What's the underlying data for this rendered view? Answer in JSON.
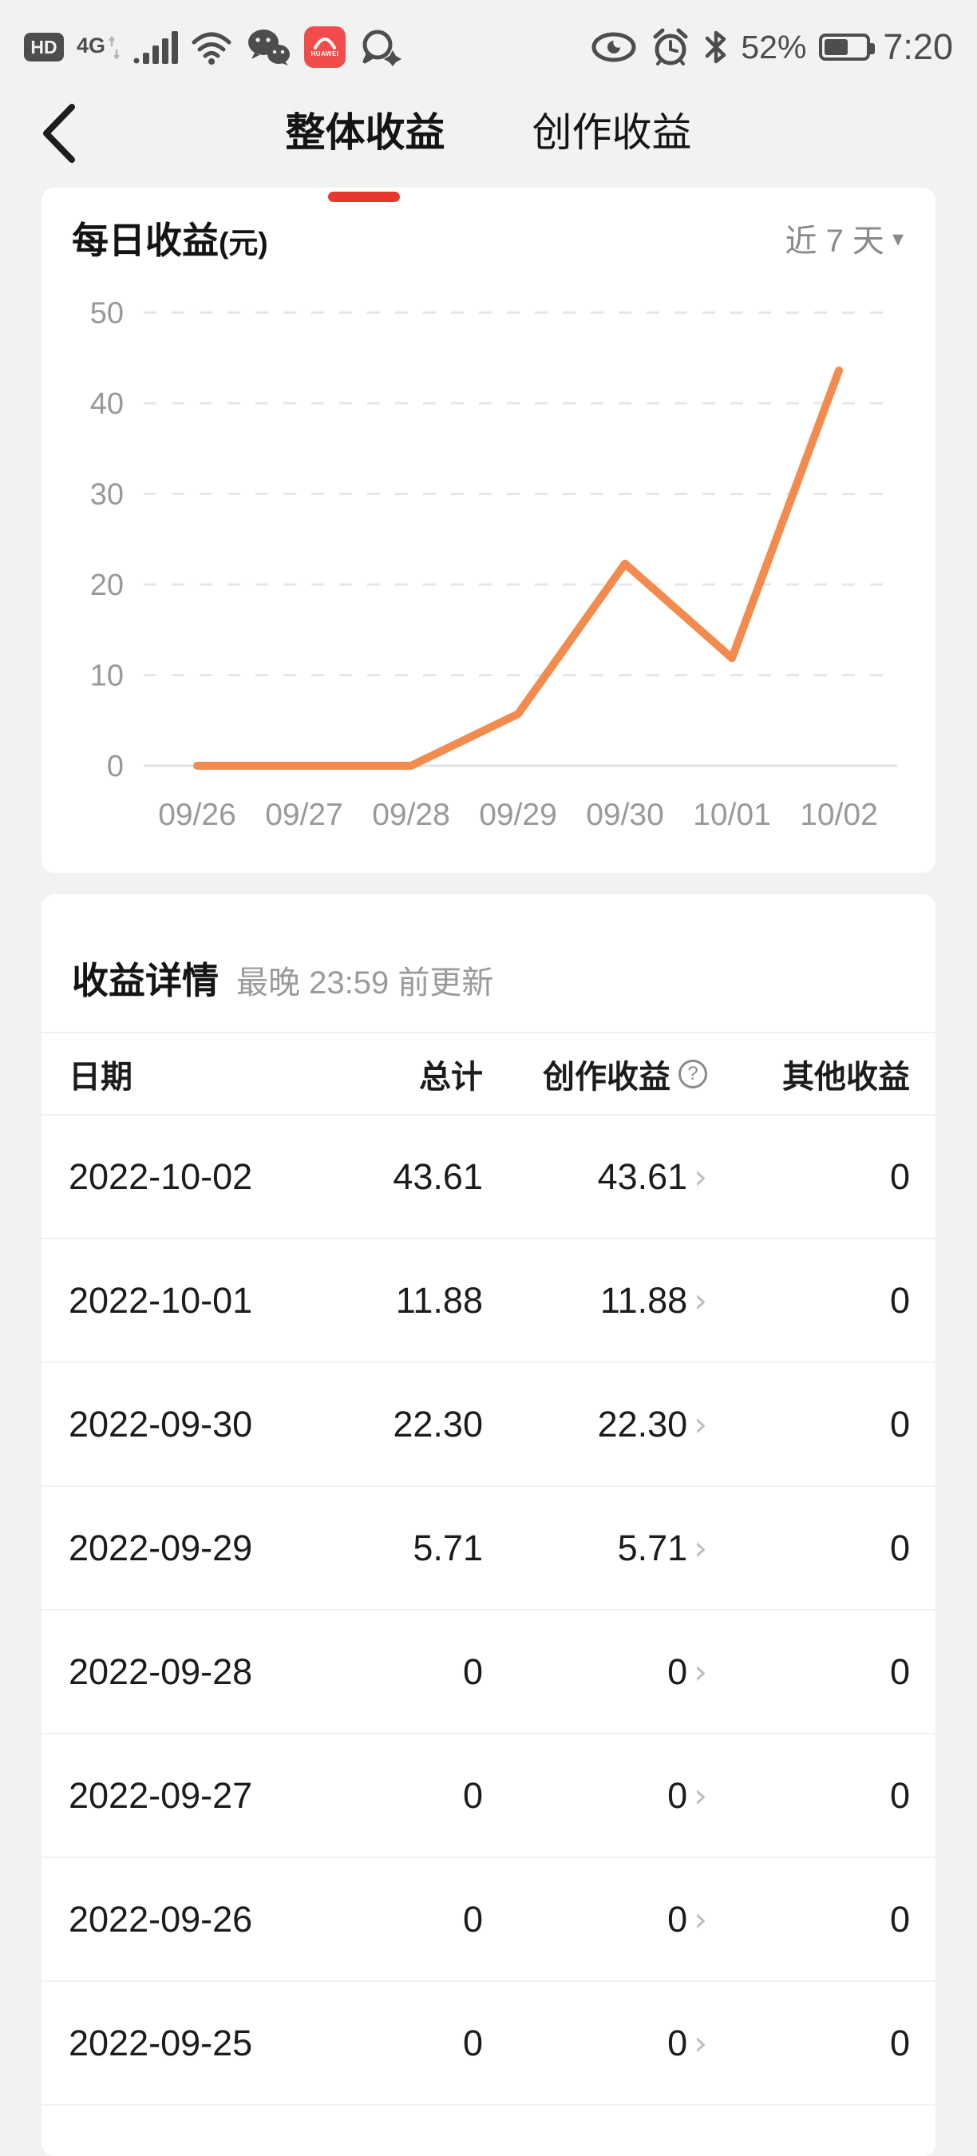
{
  "colors": {
    "accent_red": "#E8382D",
    "line_orange": "#F28B4D",
    "page_bg": "#f2f2f2"
  },
  "icons": {
    "dropdown_arrow": "▾",
    "chevron_right": "›",
    "help_mark": "?"
  },
  "status_bar": {
    "hd_label": "HD",
    "network_label": "4G",
    "huawei_label": "HUAWEI",
    "battery_percent": "52%",
    "time": "7:20"
  },
  "nav": {
    "tabs": [
      {
        "label": "整体收益",
        "active": true
      },
      {
        "label": "创作收益",
        "active": false
      }
    ]
  },
  "chart_card": {
    "title": "每日收益",
    "title_unit": "(元)",
    "range_selector": "近 7 天"
  },
  "chart_data": {
    "type": "line",
    "title": "每日收益(元)",
    "x": [
      "09/26",
      "09/27",
      "09/28",
      "09/29",
      "09/30",
      "10/01",
      "10/02"
    ],
    "values": [
      0,
      0,
      0,
      5.71,
      22.3,
      11.88,
      43.61
    ],
    "series_name": "每日收益",
    "ylim": [
      0,
      50
    ],
    "yticks": [
      0,
      10,
      20,
      30,
      40,
      50
    ],
    "grid": "horizontal-dashed",
    "legend": "none",
    "line_color": "#F28B4D"
  },
  "details_card": {
    "title": "收益详情",
    "subtitle": "最晚 23:59 前更新",
    "columns": [
      "日期",
      "总计",
      "创作收益",
      "其他收益"
    ],
    "rows": [
      {
        "date": "2022-10-02",
        "total": "43.61",
        "creation": "43.61",
        "other": "0"
      },
      {
        "date": "2022-10-01",
        "total": "11.88",
        "creation": "11.88",
        "other": "0"
      },
      {
        "date": "2022-09-30",
        "total": "22.30",
        "creation": "22.30",
        "other": "0"
      },
      {
        "date": "2022-09-29",
        "total": "5.71",
        "creation": "5.71",
        "other": "0"
      },
      {
        "date": "2022-09-28",
        "total": "0",
        "creation": "0",
        "other": "0"
      },
      {
        "date": "2022-09-27",
        "total": "0",
        "creation": "0",
        "other": "0"
      },
      {
        "date": "2022-09-26",
        "total": "0",
        "creation": "0",
        "other": "0"
      },
      {
        "date": "2022-09-25",
        "total": "0",
        "creation": "0",
        "other": "0"
      }
    ]
  }
}
